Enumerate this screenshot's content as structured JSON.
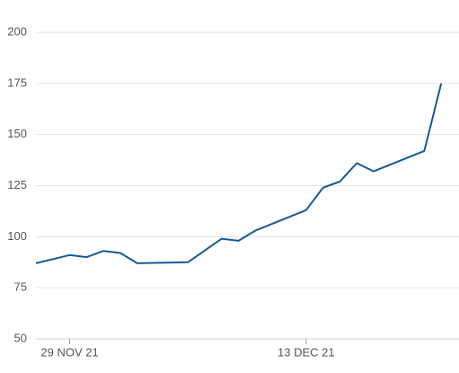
{
  "chart_data": {
    "type": "line",
    "x": [
      "2021-11-27",
      "2021-11-29",
      "2021-11-30",
      "2021-12-01",
      "2021-12-02",
      "2021-12-03",
      "2021-12-06",
      "2021-12-08",
      "2021-12-09",
      "2021-12-10",
      "2021-12-13",
      "2021-12-14",
      "2021-12-15",
      "2021-12-16",
      "2021-12-17",
      "2021-12-20",
      "2021-12-21"
    ],
    "series": [
      {
        "color": "#145a96",
        "values": [
          87,
          91,
          90,
          93,
          92,
          87,
          87.5,
          99,
          98,
          103,
          113,
          124,
          127,
          136,
          132,
          142,
          175
        ]
      }
    ],
    "xlim": [
      "2021-11-27",
      "2021-12-22"
    ],
    "xticks": [
      {
        "value": "2021-11-29",
        "label": "29 NOV 21"
      },
      {
        "value": "2021-12-13",
        "label": "13 DEC 21"
      }
    ],
    "ylim": [
      50,
      200
    ],
    "yticks": [
      50,
      75,
      100,
      125,
      150,
      175,
      200
    ],
    "grid": true
  }
}
